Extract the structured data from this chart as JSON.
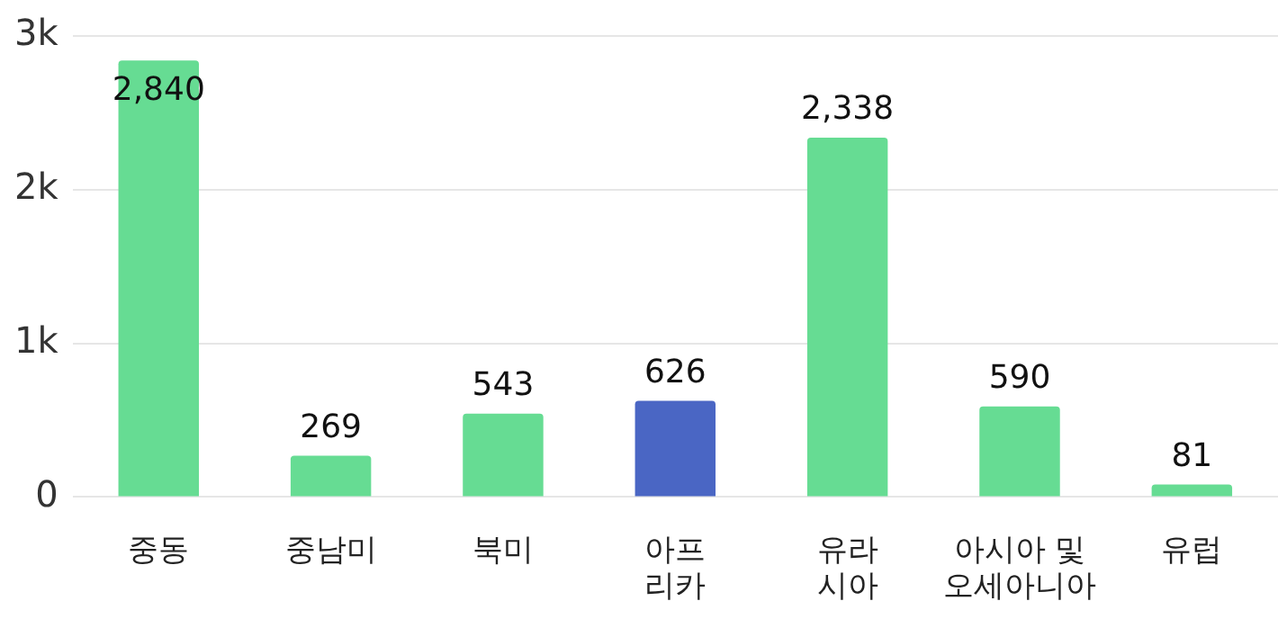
{
  "chart_data": {
    "type": "bar",
    "categories": [
      "중동",
      "중남미",
      "북미",
      "아프\n리카",
      "유라\n시아",
      "아시아 및\n오세아니아",
      "유럽"
    ],
    "values": [
      2840,
      269,
      543,
      626,
      2338,
      590,
      81
    ],
    "colors": [
      "#66dc93",
      "#66dc93",
      "#66dc93",
      "#4a66c4",
      "#66dc93",
      "#66dc93",
      "#66dc93"
    ],
    "ylim": [
      0,
      3000
    ],
    "yticks": [
      {
        "value": 0,
        "label": "0"
      },
      {
        "value": 1000,
        "label": "1k"
      },
      {
        "value": 2000,
        "label": "2k"
      },
      {
        "value": 3000,
        "label": "3k"
      }
    ],
    "value_labels": [
      "2,840",
      "269",
      "543",
      "626",
      "2,338",
      "590",
      "81"
    ],
    "grid": "y",
    "legend": false
  }
}
